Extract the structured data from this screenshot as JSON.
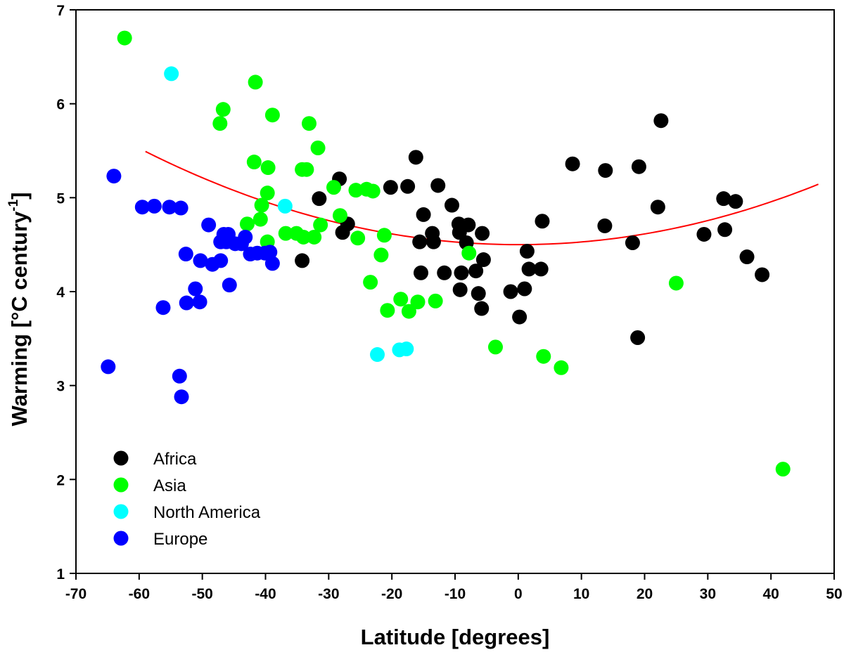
{
  "chart_data": {
    "type": "scatter",
    "xlabel": "Latitude [degrees]",
    "ylabel_main": "Warming [°C century",
    "ylabel_sup": "-1",
    "ylabel_close": "]",
    "xlim": [
      -70,
      50
    ],
    "ylim": [
      1,
      7
    ],
    "xticks": [
      -70,
      -60,
      -50,
      -40,
      -30,
      -20,
      -10,
      0,
      10,
      20,
      30,
      40,
      50
    ],
    "yticks": [
      1,
      2,
      3,
      4,
      5,
      6,
      7
    ],
    "grid": false,
    "legend_position": "bottom-left",
    "fit_curve": {
      "type": "quadratic",
      "color": "#ff0000",
      "coefficients": [
        4.5,
        0.0,
        0.000285
      ],
      "x_range": [
        -59,
        47.5
      ]
    },
    "series": [
      {
        "name": "Africa",
        "color": "#000000",
        "points": [
          [
            -34.2,
            4.33
          ],
          [
            -31.5,
            4.99
          ],
          [
            -28.3,
            5.2
          ],
          [
            -27.8,
            4.63
          ],
          [
            -27,
            4.72
          ],
          [
            -20.2,
            5.11
          ],
          [
            -17.5,
            5.12
          ],
          [
            -16.2,
            5.43
          ],
          [
            -15.6,
            4.53
          ],
          [
            -15.4,
            4.2
          ],
          [
            -15,
            4.82
          ],
          [
            -13.6,
            4.62
          ],
          [
            -13.4,
            4.53
          ],
          [
            -12.7,
            5.13
          ],
          [
            -11.7,
            4.2
          ],
          [
            -10.5,
            4.92
          ],
          [
            -9.4,
            4.72
          ],
          [
            -9.3,
            4.63
          ],
          [
            -9,
            4.2
          ],
          [
            -9.2,
            4.02
          ],
          [
            -8.2,
            4.52
          ],
          [
            -7.9,
            4.71
          ],
          [
            -6.7,
            4.22
          ],
          [
            -6.3,
            3.98
          ],
          [
            -5.8,
            3.82
          ],
          [
            -5.7,
            4.62
          ],
          [
            -5.5,
            4.34
          ],
          [
            -1.2,
            4.0
          ],
          [
            0.2,
            3.73
          ],
          [
            1,
            4.03
          ],
          [
            1.4,
            4.43
          ],
          [
            1.7,
            4.24
          ],
          [
            3.6,
            4.24
          ],
          [
            3.8,
            4.75
          ],
          [
            8.6,
            5.36
          ],
          [
            13.7,
            4.7
          ],
          [
            13.8,
            5.29
          ],
          [
            18.1,
            4.52
          ],
          [
            18.9,
            3.51
          ],
          [
            19.1,
            5.33
          ],
          [
            22.1,
            4.9
          ],
          [
            22.6,
            5.82
          ],
          [
            29.4,
            4.61
          ],
          [
            32.5,
            4.99
          ],
          [
            32.7,
            4.66
          ],
          [
            34.4,
            4.96
          ],
          [
            36.2,
            4.37
          ],
          [
            38.6,
            4.18
          ]
        ]
      },
      {
        "name": "Asia",
        "color": "#00ff00",
        "points": [
          [
            -62.3,
            6.7
          ],
          [
            -47.2,
            5.79
          ],
          [
            -46.7,
            5.94
          ],
          [
            -41.6,
            6.23
          ],
          [
            -41.8,
            5.38
          ],
          [
            -40.6,
            4.92
          ],
          [
            -40.8,
            4.77
          ],
          [
            -42.9,
            4.72
          ],
          [
            -39.7,
            5.05
          ],
          [
            -39.6,
            5.32
          ],
          [
            -39.7,
            4.53
          ],
          [
            -38.9,
            5.88
          ],
          [
            -36.8,
            4.62
          ],
          [
            -35.1,
            4.62
          ],
          [
            -34.2,
            5.3
          ],
          [
            -33.5,
            5.3
          ],
          [
            -34,
            4.58
          ],
          [
            -33.1,
            5.79
          ],
          [
            -32.3,
            4.58
          ],
          [
            -31.7,
            5.53
          ],
          [
            -31.3,
            4.71
          ],
          [
            -29.2,
            5.11
          ],
          [
            -28.2,
            4.81
          ],
          [
            -25.7,
            5.08
          ],
          [
            -25.4,
            4.57
          ],
          [
            -24,
            5.09
          ],
          [
            -23,
            5.07
          ],
          [
            -23.4,
            4.1
          ],
          [
            -21.7,
            4.39
          ],
          [
            -21.2,
            4.6
          ],
          [
            -20.7,
            3.8
          ],
          [
            -18.6,
            3.92
          ],
          [
            -17.3,
            3.79
          ],
          [
            -15.9,
            3.89
          ],
          [
            -13.1,
            3.9
          ],
          [
            -7.8,
            4.41
          ],
          [
            -3.6,
            3.41
          ],
          [
            4,
            3.31
          ],
          [
            6.8,
            3.19
          ],
          [
            25,
            4.09
          ],
          [
            41.9,
            2.11
          ]
        ]
      },
      {
        "name": "North America",
        "color": "#00ffff",
        "points": [
          [
            -54.9,
            6.32
          ],
          [
            -36.9,
            4.91
          ],
          [
            -22.3,
            3.33
          ],
          [
            -18.8,
            3.38
          ],
          [
            -17.7,
            3.39
          ]
        ]
      },
      {
        "name": "Europe",
        "color": "#0000ff",
        "points": [
          [
            -64.9,
            3.2
          ],
          [
            -64,
            5.23
          ],
          [
            -59.5,
            4.9
          ],
          [
            -57.6,
            4.91
          ],
          [
            -56.2,
            3.83
          ],
          [
            -55.2,
            4.9
          ],
          [
            -53.6,
            3.1
          ],
          [
            -53.3,
            2.88
          ],
          [
            -53.4,
            4.89
          ],
          [
            -52.6,
            4.4
          ],
          [
            -52.5,
            3.88
          ],
          [
            -51.1,
            4.03
          ],
          [
            -50.4,
            3.89
          ],
          [
            -50.3,
            4.33
          ],
          [
            -49,
            4.71
          ],
          [
            -48.4,
            4.29
          ],
          [
            -47.1,
            4.33
          ],
          [
            -47.1,
            4.53
          ],
          [
            -46.6,
            4.61
          ],
          [
            -46.2,
            4.53
          ],
          [
            -45.9,
            4.61
          ],
          [
            -45.7,
            4.07
          ],
          [
            -44.8,
            4.51
          ],
          [
            -43.8,
            4.51
          ],
          [
            -43.2,
            4.58
          ],
          [
            -42.4,
            4.4
          ],
          [
            -41.3,
            4.41
          ],
          [
            -40.1,
            4.41
          ],
          [
            -39.3,
            4.42
          ],
          [
            -38.9,
            4.3
          ]
        ]
      }
    ]
  }
}
